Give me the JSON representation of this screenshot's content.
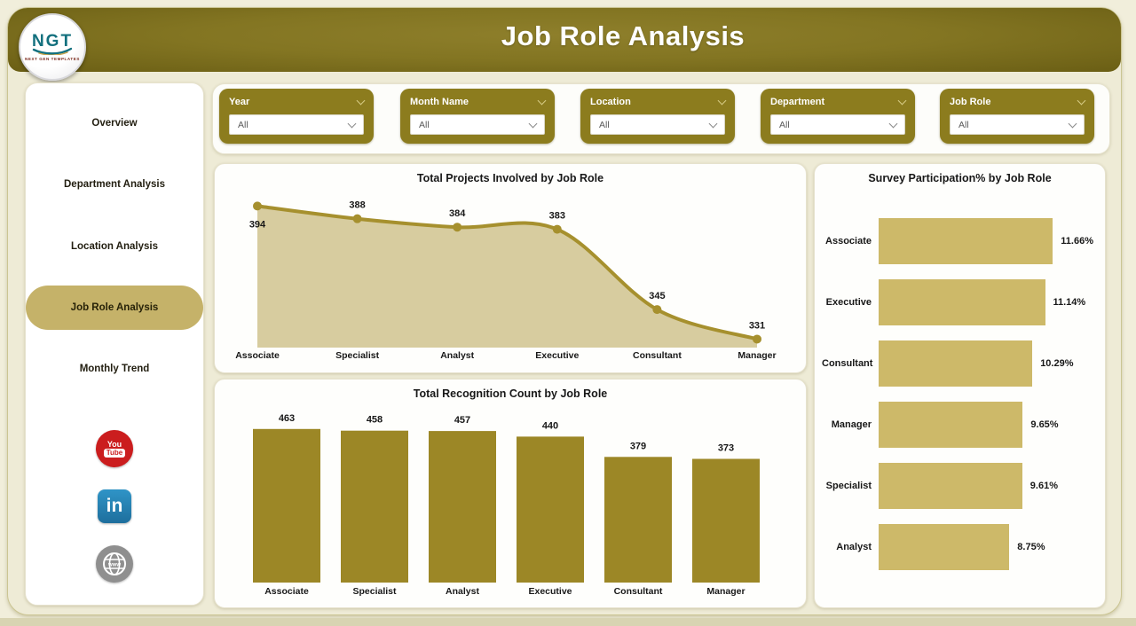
{
  "header": {
    "title": "Job Role Analysis"
  },
  "logo": {
    "text": "NGT",
    "subtext": "NEXT GEN TEMPLATES"
  },
  "sidebar": {
    "items": [
      {
        "label": "Overview",
        "active": false
      },
      {
        "label": "Department Analysis",
        "active": false
      },
      {
        "label": "Location Analysis",
        "active": false
      },
      {
        "label": "Job Role Analysis",
        "active": true
      },
      {
        "label": "Monthly Trend",
        "active": false
      }
    ],
    "social": [
      {
        "name": "youtube",
        "color": "#cb1d1e"
      },
      {
        "name": "linkedin",
        "color": "#2e86b8"
      },
      {
        "name": "website",
        "color": "#8f8f8f"
      }
    ]
  },
  "filters": {
    "items": [
      {
        "label": "Year",
        "value": "All"
      },
      {
        "label": "Month Name",
        "value": "All"
      },
      {
        "label": "Location",
        "value": "All"
      },
      {
        "label": "Department",
        "value": "All"
      },
      {
        "label": "Job Role",
        "value": "All"
      }
    ]
  },
  "chart_data": [
    {
      "type": "area",
      "title": "Total Projects Involved by Job Role",
      "categories": [
        "Associate",
        "Specialist",
        "Analyst",
        "Executive",
        "Consultant",
        "Manager"
      ],
      "values": [
        394,
        388,
        384,
        383,
        345,
        331
      ],
      "ylim": [
        327,
        395
      ],
      "line_color": "#a6902e",
      "fill_color": "#d7cc9f",
      "grid": false,
      "legend": "none"
    },
    {
      "type": "bar",
      "title": "Total Recognition Count by Job Role",
      "categories": [
        "Associate",
        "Specialist",
        "Analyst",
        "Executive",
        "Consultant",
        "Manager"
      ],
      "values": [
        463,
        458,
        457,
        440,
        379,
        373
      ],
      "ylim": [
        0,
        500
      ],
      "bar_color": "#9c8726",
      "grid": false,
      "legend": "none"
    },
    {
      "type": "hbar",
      "title": "Survey Participation% by Job Role",
      "categories": [
        "Associate",
        "Executive",
        "Consultant",
        "Manager",
        "Specialist",
        "Analyst"
      ],
      "values": [
        11.66,
        11.14,
        10.29,
        9.65,
        9.61,
        8.75
      ],
      "value_labels": [
        "11.66%",
        "11.14%",
        "10.29%",
        "9.65%",
        "9.61%",
        "8.75%"
      ],
      "xlim": [
        0,
        12
      ],
      "bar_color": "#cdb969",
      "grid": false,
      "legend": "none"
    }
  ]
}
